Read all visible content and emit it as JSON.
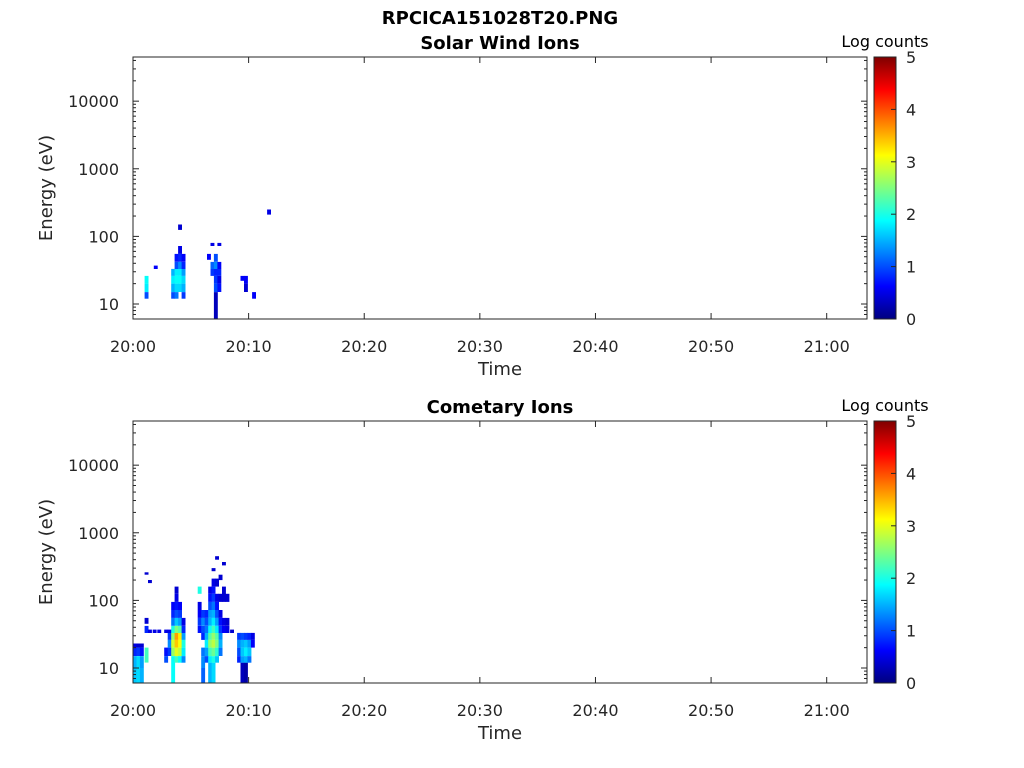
{
  "figure": {
    "title": "RPCICA151028T20.PNG"
  },
  "chart_data": [
    {
      "type": "heatmap",
      "title": "Solar Wind Ions",
      "xlabel": "Time",
      "ylabel": "Energy (eV)",
      "xlim": [
        "20:00",
        "21:03"
      ],
      "ylim": [
        6,
        45000
      ],
      "yscale": "log",
      "x_ticks": [
        "20:00",
        "20:10",
        "20:20",
        "20:30",
        "20:40",
        "20:50",
        "21:00"
      ],
      "y_ticks": [
        10,
        100,
        1000,
        10000
      ],
      "y_tick_labels": [
        "10",
        "100",
        "1000",
        "10000"
      ],
      "colorbar": {
        "label": "Log counts",
        "range": [
          0,
          5
        ],
        "ticks": [
          "0",
          "1",
          "2",
          "3",
          "4",
          "5"
        ]
      },
      "grid": false,
      "cells_note": "each cell: [minute after 20:00, energy low (eV), energy high (eV), log counts]",
      "cells": [
        [
          1.0,
          12,
          15,
          1.0
        ],
        [
          1.0,
          15,
          20,
          1.8
        ],
        [
          1.0,
          20,
          26,
          1.9
        ],
        [
          1.8,
          33,
          37,
          0.6
        ],
        [
          3.3,
          12,
          15,
          1.0
        ],
        [
          3.3,
          15,
          20,
          1.5
        ],
        [
          3.3,
          20,
          26,
          1.8
        ],
        [
          3.3,
          26,
          33,
          1.5
        ],
        [
          3.6,
          12,
          15,
          1.2
        ],
        [
          3.6,
          15,
          20,
          1.7
        ],
        [
          3.6,
          20,
          26,
          1.9
        ],
        [
          3.6,
          26,
          33,
          1.8
        ],
        [
          3.6,
          33,
          42,
          1.0
        ],
        [
          3.6,
          42,
          55,
          0.7
        ],
        [
          3.9,
          15,
          20,
          1.7
        ],
        [
          3.9,
          20,
          26,
          1.9
        ],
        [
          3.9,
          26,
          33,
          1.8
        ],
        [
          3.9,
          33,
          42,
          1.3
        ],
        [
          3.9,
          42,
          55,
          0.8
        ],
        [
          3.9,
          55,
          72,
          0.5
        ],
        [
          4.2,
          12,
          15,
          0.9
        ],
        [
          4.2,
          15,
          20,
          1.5
        ],
        [
          4.2,
          20,
          26,
          1.7
        ],
        [
          4.2,
          26,
          33,
          1.4
        ],
        [
          4.2,
          33,
          42,
          0.8
        ],
        [
          4.2,
          42,
          55,
          0.6
        ],
        [
          3.9,
          125,
          150,
          0.4
        ],
        [
          6.4,
          45,
          55,
          0.6
        ],
        [
          6.7,
          26,
          33,
          0.9
        ],
        [
          6.7,
          33,
          42,
          1.1
        ],
        [
          6.7,
          72,
          80,
          0.5
        ],
        [
          7.0,
          6,
          15,
          0.3
        ],
        [
          7.0,
          15,
          20,
          1.0
        ],
        [
          7.0,
          20,
          26,
          0.9
        ],
        [
          7.0,
          26,
          33,
          0.8
        ],
        [
          7.0,
          33,
          42,
          1.3
        ],
        [
          7.0,
          42,
          55,
          1.0
        ],
        [
          7.3,
          15,
          20,
          0.7
        ],
        [
          7.3,
          20,
          26,
          0.5
        ],
        [
          7.3,
          26,
          33,
          0.8
        ],
        [
          7.3,
          33,
          42,
          0.6
        ],
        [
          7.3,
          72,
          80,
          0.5
        ],
        [
          9.3,
          22,
          26,
          0.6
        ],
        [
          9.6,
          15,
          20,
          0.4
        ],
        [
          9.6,
          20,
          26,
          0.6
        ],
        [
          10.3,
          12,
          15,
          0.6
        ],
        [
          11.6,
          210,
          250,
          0.5
        ]
      ]
    },
    {
      "type": "heatmap",
      "title": "Cometary Ions",
      "xlabel": "Time",
      "ylabel": "Energy (eV)",
      "xlim": [
        "20:00",
        "21:03"
      ],
      "ylim": [
        6,
        45000
      ],
      "yscale": "log",
      "x_ticks": [
        "20:00",
        "20:10",
        "20:20",
        "20:30",
        "20:40",
        "20:50",
        "21:00"
      ],
      "y_ticks": [
        10,
        100,
        1000,
        10000
      ],
      "y_tick_labels": [
        "10",
        "100",
        "1000",
        "10000"
      ],
      "colorbar": {
        "label": "Log counts",
        "range": [
          0,
          5
        ],
        "ticks": [
          "0",
          "1",
          "2",
          "3",
          "4",
          "5"
        ]
      },
      "grid": false,
      "cells_note": "each cell: [minute after 20:00, energy low (eV), energy high (eV), log counts]",
      "cells": [
        [
          0.0,
          6,
          10,
          1.6
        ],
        [
          0.0,
          10,
          15,
          1.5
        ],
        [
          0.0,
          15,
          20,
          0.8
        ],
        [
          0.0,
          20,
          23,
          0.5
        ],
        [
          0.3,
          6,
          10,
          1.7
        ],
        [
          0.3,
          10,
          15,
          1.7
        ],
        [
          0.3,
          15,
          20,
          0.9
        ],
        [
          0.3,
          20,
          23,
          0.4
        ],
        [
          0.6,
          6,
          10,
          1.5
        ],
        [
          0.6,
          10,
          15,
          1.4
        ],
        [
          0.6,
          15,
          20,
          0.7
        ],
        [
          0.6,
          20,
          23,
          0.4
        ],
        [
          1.0,
          12,
          20,
          2.2
        ],
        [
          1.0,
          33,
          42,
          0.8
        ],
        [
          1.0,
          45,
          55,
          0.4
        ],
        [
          1.0,
          240,
          260,
          0.4
        ],
        [
          1.3,
          33,
          37,
          0.5
        ],
        [
          1.3,
          180,
          200,
          0.4
        ],
        [
          1.7,
          33,
          37,
          0.5
        ],
        [
          2.1,
          33,
          37,
          0.5
        ],
        [
          2.7,
          12,
          15,
          1.0
        ],
        [
          2.7,
          15,
          20,
          0.7
        ],
        [
          2.7,
          33,
          37,
          0.5
        ],
        [
          3.0,
          15,
          20,
          0.9
        ],
        [
          3.0,
          20,
          26,
          1.3
        ],
        [
          3.0,
          26,
          33,
          0.9
        ],
        [
          3.0,
          33,
          37,
          0.5
        ],
        [
          3.3,
          6,
          15,
          1.9
        ],
        [
          3.3,
          15,
          20,
          2.6
        ],
        [
          3.3,
          20,
          26,
          2.9
        ],
        [
          3.3,
          26,
          33,
          2.6
        ],
        [
          3.3,
          33,
          42,
          2.0
        ],
        [
          3.3,
          42,
          55,
          1.2
        ],
        [
          3.3,
          55,
          72,
          0.8
        ],
        [
          3.3,
          72,
          95,
          0.6
        ],
        [
          3.6,
          12,
          15,
          2.2
        ],
        [
          3.6,
          15,
          20,
          3.0
        ],
        [
          3.6,
          20,
          26,
          3.4
        ],
        [
          3.6,
          26,
          33,
          3.6
        ],
        [
          3.6,
          33,
          42,
          2.5
        ],
        [
          3.6,
          42,
          55,
          1.6
        ],
        [
          3.6,
          55,
          72,
          1.0
        ],
        [
          3.6,
          72,
          95,
          0.7
        ],
        [
          3.6,
          95,
          125,
          0.5
        ],
        [
          3.6,
          125,
          160,
          0.4
        ],
        [
          3.9,
          12,
          15,
          1.9
        ],
        [
          3.9,
          15,
          20,
          2.8
        ],
        [
          3.9,
          20,
          26,
          3.1
        ],
        [
          3.9,
          26,
          33,
          3.2
        ],
        [
          3.9,
          33,
          42,
          2.3
        ],
        [
          3.9,
          42,
          55,
          1.4
        ],
        [
          3.9,
          55,
          72,
          0.9
        ],
        [
          3.9,
          72,
          95,
          0.6
        ],
        [
          4.2,
          12,
          15,
          1.3
        ],
        [
          4.2,
          15,
          20,
          1.8
        ],
        [
          4.2,
          20,
          26,
          2.0
        ],
        [
          4.2,
          26,
          33,
          1.4
        ],
        [
          4.2,
          33,
          42,
          0.8
        ],
        [
          4.2,
          42,
          55,
          0.5
        ],
        [
          5.6,
          33,
          42,
          0.7
        ],
        [
          5.6,
          42,
          55,
          0.9
        ],
        [
          5.6,
          55,
          72,
          0.6
        ],
        [
          5.6,
          72,
          95,
          0.5
        ],
        [
          5.6,
          125,
          160,
          2.0
        ],
        [
          5.9,
          6,
          10,
          1.1
        ],
        [
          5.9,
          10,
          15,
          1.3
        ],
        [
          5.9,
          15,
          20,
          1.2
        ],
        [
          5.9,
          26,
          33,
          0.8
        ],
        [
          5.9,
          33,
          42,
          1.0
        ],
        [
          5.9,
          42,
          55,
          1.3
        ],
        [
          5.9,
          55,
          72,
          0.9
        ],
        [
          6.2,
          12,
          15,
          1.0
        ],
        [
          6.2,
          15,
          20,
          1.4
        ],
        [
          6.2,
          20,
          26,
          1.8
        ],
        [
          6.2,
          26,
          33,
          1.5
        ],
        [
          6.2,
          33,
          42,
          1.2
        ],
        [
          6.2,
          42,
          55,
          1.0
        ],
        [
          6.2,
          55,
          72,
          0.8
        ],
        [
          6.5,
          6,
          12,
          1.5
        ],
        [
          6.5,
          12,
          15,
          1.8
        ],
        [
          6.5,
          15,
          20,
          2.2
        ],
        [
          6.5,
          20,
          26,
          2.6
        ],
        [
          6.5,
          26,
          33,
          2.3
        ],
        [
          6.5,
          33,
          42,
          1.9
        ],
        [
          6.5,
          42,
          55,
          1.5
        ],
        [
          6.5,
          55,
          72,
          1.4
        ],
        [
          6.5,
          72,
          95,
          1.0
        ],
        [
          6.5,
          95,
          125,
          0.7
        ],
        [
          6.5,
          125,
          160,
          0.5
        ],
        [
          6.8,
          6,
          12,
          1.7
        ],
        [
          6.8,
          12,
          15,
          2.0
        ],
        [
          6.8,
          15,
          20,
          2.4
        ],
        [
          6.8,
          20,
          26,
          2.8
        ],
        [
          6.8,
          26,
          33,
          2.6
        ],
        [
          6.8,
          33,
          42,
          2.2
        ],
        [
          6.8,
          42,
          55,
          1.8
        ],
        [
          6.8,
          55,
          72,
          1.5
        ],
        [
          6.8,
          72,
          95,
          1.2
        ],
        [
          6.8,
          95,
          125,
          0.9
        ],
        [
          6.8,
          125,
          160,
          0.7
        ],
        [
          6.8,
          160,
          210,
          0.5
        ],
        [
          6.8,
          270,
          300,
          0.4
        ],
        [
          7.1,
          12,
          15,
          1.6
        ],
        [
          7.1,
          15,
          20,
          2.1
        ],
        [
          7.1,
          20,
          26,
          2.5
        ],
        [
          7.1,
          26,
          33,
          2.3
        ],
        [
          7.1,
          33,
          42,
          1.8
        ],
        [
          7.1,
          42,
          55,
          1.4
        ],
        [
          7.1,
          55,
          72,
          1.0
        ],
        [
          7.1,
          72,
          95,
          0.7
        ],
        [
          7.1,
          95,
          125,
          0.5
        ],
        [
          7.1,
          160,
          210,
          0.4
        ],
        [
          7.1,
          400,
          450,
          0.4
        ],
        [
          7.4,
          15,
          20,
          1.2
        ],
        [
          7.4,
          20,
          26,
          1.5
        ],
        [
          7.4,
          26,
          33,
          1.3
        ],
        [
          7.4,
          33,
          42,
          0.9
        ],
        [
          7.4,
          42,
          55,
          0.7
        ],
        [
          7.4,
          55,
          72,
          0.5
        ],
        [
          7.4,
          95,
          125,
          0.4
        ],
        [
          7.4,
          200,
          240,
          0.4
        ],
        [
          7.7,
          33,
          42,
          0.6
        ],
        [
          7.7,
          42,
          55,
          0.5
        ],
        [
          7.7,
          95,
          160,
          0.4
        ],
        [
          7.7,
          330,
          370,
          0.4
        ],
        [
          8.0,
          33,
          42,
          0.5
        ],
        [
          8.0,
          42,
          55,
          0.4
        ],
        [
          8.0,
          95,
          125,
          0.4
        ],
        [
          8.4,
          33,
          37,
          0.4
        ],
        [
          9.0,
          12,
          15,
          0.8
        ],
        [
          9.0,
          15,
          20,
          1.0
        ],
        [
          9.0,
          20,
          26,
          1.3
        ],
        [
          9.0,
          26,
          33,
          0.9
        ],
        [
          9.3,
          6,
          12,
          0.3
        ],
        [
          9.3,
          12,
          15,
          1.4
        ],
        [
          9.3,
          15,
          20,
          1.6
        ],
        [
          9.3,
          20,
          26,
          1.5
        ],
        [
          9.3,
          26,
          33,
          1.0
        ],
        [
          9.6,
          6,
          12,
          0.2
        ],
        [
          9.6,
          12,
          15,
          1.5
        ],
        [
          9.6,
          15,
          20,
          1.8
        ],
        [
          9.6,
          20,
          26,
          1.6
        ],
        [
          9.6,
          26,
          33,
          0.9
        ],
        [
          9.9,
          12,
          15,
          1.2
        ],
        [
          9.9,
          15,
          20,
          1.6
        ],
        [
          9.9,
          20,
          26,
          1.4
        ],
        [
          9.9,
          26,
          33,
          0.8
        ],
        [
          10.2,
          20,
          26,
          0.6
        ],
        [
          10.2,
          26,
          33,
          0.5
        ]
      ]
    }
  ]
}
